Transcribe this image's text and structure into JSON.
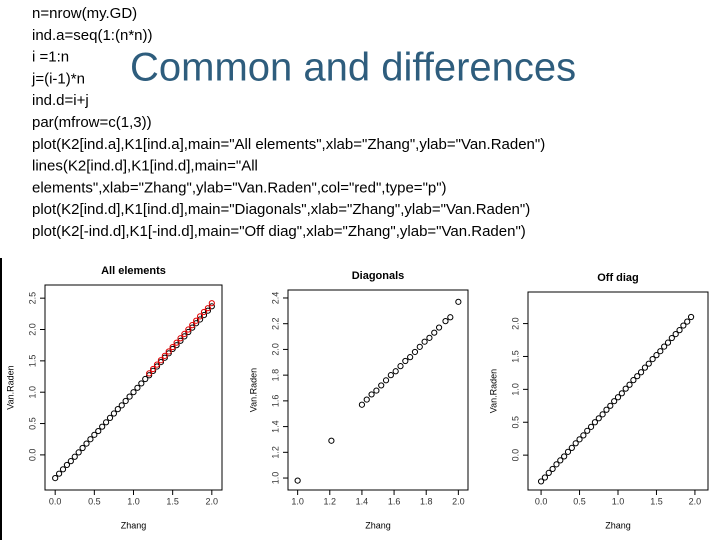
{
  "slide": {
    "title": "Common and differences",
    "code": [
      "n=nrow(my.GD)",
      "ind.a=seq(1:(n*n))",
      "i =1:n",
      "j=(i-1)*n",
      "ind.d=i+j",
      "par(mfrow=c(1,3))",
      "plot(K2[ind.a],K1[ind.a],main=\"All elements\",xlab=\"Zhang\",ylab=\"Van.Raden\")",
      "lines(K2[ind.d],K1[ind.d],main=\"All",
      "elements\",xlab=\"Zhang\",ylab=\"Van.Raden\",col=\"red\",type=\"p\")",
      "plot(K2[ind.d],K1[ind.d],main=\"Diagonals\",xlab=\"Zhang\",ylab=\"Van.Raden\")",
      "plot(K2[-ind.d],K1[-ind.d],main=\"Off diag\",xlab=\"Zhang\",ylab=\"Van.Raden\")"
    ]
  },
  "chart_data": [
    {
      "type": "scatter",
      "title": "All elements",
      "x_label": "Zhang",
      "y_label": "Van.Raden",
      "xlim": [
        -0.13,
        2.13
      ],
      "ylim": [
        -0.56,
        2.71
      ],
      "xticks": [
        {
          "value": 0,
          "label": "0.0"
        },
        0.5,
        {
          "value": 1,
          "label": "1.0"
        },
        1.5,
        {
          "value": 2,
          "label": "2.0"
        }
      ],
      "yticks": [
        {
          "value": 0,
          "label": "0.0"
        },
        0.5,
        {
          "value": 1,
          "label": "1.0"
        },
        1.5,
        {
          "value": 2,
          "label": "2.0"
        },
        2.5
      ],
      "series": [
        {
          "color": "#000000",
          "x": [
            0,
            0.05,
            0.1,
            0.15,
            0.2,
            0.25,
            0.3,
            0.35,
            0.4,
            0.45,
            0.5,
            0.55,
            0.6,
            0.65,
            0.7,
            0.75,
            0.8,
            0.85,
            0.9,
            0.95,
            1.0,
            1.05,
            1.1,
            1.15,
            1.2,
            1.25,
            1.3,
            1.35,
            1.4,
            1.45,
            1.5,
            1.55,
            1.6,
            1.65,
            1.7,
            1.75,
            1.8,
            1.85,
            1.9,
            1.95,
            2.0
          ],
          "values": [
            -0.37,
            -0.3,
            -0.23,
            -0.16,
            -0.1,
            -0.03,
            0.04,
            0.11,
            0.18,
            0.25,
            0.32,
            0.38,
            0.45,
            0.52,
            0.59,
            0.66,
            0.73,
            0.79,
            0.86,
            0.93,
            1.0,
            1.07,
            1.14,
            1.21,
            1.27,
            1.34,
            1.41,
            1.48,
            1.55,
            1.62,
            1.69,
            1.75,
            1.82,
            1.89,
            1.96,
            2.03,
            2.1,
            2.16,
            2.23,
            2.3,
            2.37
          ]
        },
        {
          "color": "#e00000",
          "x": [
            1.2,
            1.25,
            1.3,
            1.35,
            1.4,
            1.45,
            1.5,
            1.55,
            1.6,
            1.65,
            1.7,
            1.75,
            1.8,
            1.85,
            1.9,
            1.95,
            2.0
          ],
          "values": [
            1.3,
            1.37,
            1.44,
            1.51,
            1.58,
            1.65,
            1.72,
            1.79,
            1.86,
            1.93,
            2.0,
            2.07,
            2.14,
            2.21,
            2.28,
            2.34,
            2.42
          ]
        }
      ]
    },
    {
      "type": "scatter",
      "title": "Diagonals",
      "x_label": "Zhang",
      "y_label": "Van.Raden",
      "xlim": [
        0.94,
        2.06
      ],
      "ylim": [
        0.907,
        2.462
      ],
      "xticks": [
        {
          "value": 1,
          "label": "1.0"
        },
        1.2,
        1.4,
        1.6,
        1.8,
        {
          "value": 2,
          "label": "2.0"
        }
      ],
      "yticks": [
        {
          "value": 1,
          "label": "1.0"
        },
        1.2,
        1.4,
        1.6,
        1.8,
        {
          "value": 2,
          "label": "2.0"
        },
        2.2,
        2.4
      ],
      "series": [
        {
          "color": "#000000",
          "x": [
            1.0,
            1.21,
            1.4,
            1.43,
            1.46,
            1.49,
            1.52,
            1.55,
            1.58,
            1.61,
            1.64,
            1.67,
            1.7,
            1.73,
            1.76,
            1.79,
            1.82,
            1.85,
            1.88,
            1.92,
            1.95,
            2.0
          ],
          "values": [
            0.98,
            1.29,
            1.57,
            1.61,
            1.65,
            1.68,
            1.72,
            1.76,
            1.8,
            1.83,
            1.87,
            1.91,
            1.94,
            1.98,
            2.02,
            2.06,
            2.09,
            2.13,
            2.17,
            2.22,
            2.25,
            2.37
          ]
        }
      ]
    },
    {
      "type": "scatter",
      "title": "Off diag",
      "x_label": "Zhang",
      "y_label": "Van.Raden",
      "xlim": [
        -0.17,
        2.17
      ],
      "ylim": [
        -0.53,
        2.48
      ],
      "xticks": [
        {
          "value": 0,
          "label": "0.0"
        },
        0.5,
        {
          "value": 1,
          "label": "1.0"
        },
        1.5,
        {
          "value": 2,
          "label": "2.0"
        }
      ],
      "yticks": [
        {
          "value": 0,
          "label": "0.0"
        },
        0.5,
        {
          "value": 1,
          "label": "1.0"
        },
        1.5,
        {
          "value": 2,
          "label": "2.0"
        }
      ],
      "series": [
        {
          "color": "#000000",
          "x": [
            0,
            0.05,
            0.1,
            0.15,
            0.2,
            0.25,
            0.3,
            0.35,
            0.4,
            0.45,
            0.5,
            0.55,
            0.6,
            0.65,
            0.7,
            0.75,
            0.8,
            0.85,
            0.9,
            0.95,
            1.0,
            1.05,
            1.1,
            1.15,
            1.2,
            1.25,
            1.3,
            1.35,
            1.4,
            1.45,
            1.5,
            1.55,
            1.6,
            1.65,
            1.7,
            1.75,
            1.8,
            1.85,
            1.9,
            1.95
          ],
          "values": [
            -0.4,
            -0.34,
            -0.27,
            -0.21,
            -0.14,
            -0.08,
            -0.02,
            0.05,
            0.11,
            0.18,
            0.24,
            0.3,
            0.37,
            0.43,
            0.5,
            0.56,
            0.62,
            0.69,
            0.75,
            0.82,
            0.88,
            0.94,
            1.01,
            1.07,
            1.14,
            1.2,
            1.26,
            1.33,
            1.39,
            1.46,
            1.52,
            1.58,
            1.65,
            1.71,
            1.78,
            1.84,
            1.9,
            1.97,
            2.03,
            2.1
          ]
        }
      ]
    }
  ]
}
